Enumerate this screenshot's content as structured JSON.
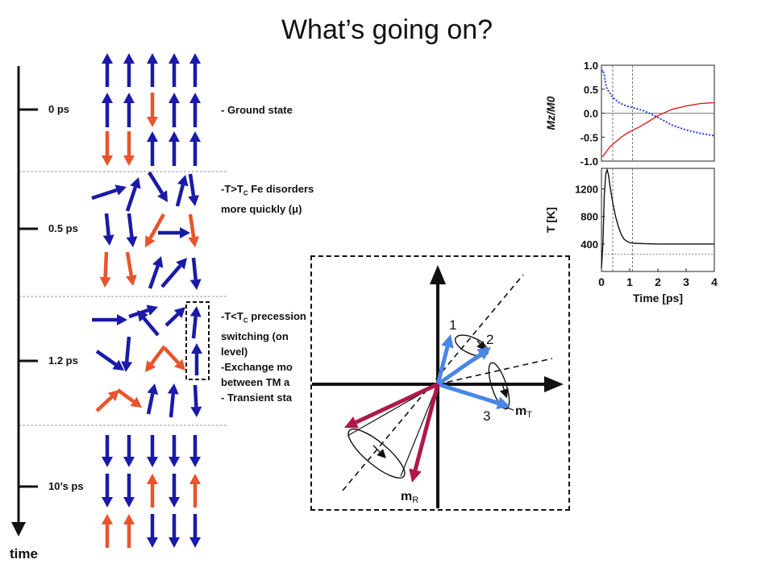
{
  "title": "What’s going on?",
  "timeline": {
    "axis_label": "time",
    "ticks": [
      "0 ps",
      "0.5 ps",
      "1.2 ps",
      "10’s ps"
    ]
  },
  "descriptions": {
    "ground": "- Ground state",
    "disorder_1": "-T>T",
    "disorder_sub": "C",
    "disorder_2": " Fe disorders",
    "disorder_3": "more quickly (μ)",
    "prec_1": "-T<T",
    "prec_sub": "C",
    "prec_2": " precession",
    "prec_3": "switching (on",
    "prec_4": "level)",
    "exchange_1": "-Exchange mo",
    "exchange_2": "between TM a",
    "transient": "- Transient sta"
  },
  "inset": {
    "labels": [
      "1",
      "2",
      "3"
    ],
    "mT": "m",
    "mT_sub": "T",
    "mR": "m",
    "mR_sub": "R",
    "colors": {
      "blue": "#4a86e8",
      "red": "#b0174a"
    }
  },
  "colors": {
    "spin_blue": "#1a1aa8",
    "spin_red": "#e8542b"
  },
  "chart_data": [
    {
      "type": "line",
      "ylabel": "Mz/M0",
      "ylim": [
        -1.0,
        1.0
      ],
      "yticks": [
        "1.0",
        "0.5",
        "0.0",
        "-0.5",
        "-1.0"
      ],
      "xlim": [
        0,
        4
      ],
      "series": [
        {
          "color": "#1f3fd6",
          "style": "dotted",
          "x": [
            0,
            0.05,
            0.1,
            0.15,
            0.2,
            0.3,
            0.4,
            0.6,
            0.8,
            1.0,
            1.2,
            1.5,
            1.8,
            2.1,
            2.5,
            3.0,
            3.5,
            4.0
          ],
          "y": [
            0.88,
            0.9,
            0.8,
            0.6,
            0.5,
            0.42,
            0.33,
            0.23,
            0.17,
            0.13,
            0.1,
            0.05,
            -0.03,
            -0.12,
            -0.25,
            -0.35,
            -0.42,
            -0.47
          ]
        },
        {
          "color": "#e02020",
          "style": "solid",
          "x": [
            0,
            0.05,
            0.1,
            0.2,
            0.3,
            0.5,
            0.7,
            0.9,
            1.1,
            1.3,
            1.6,
            2.0,
            2.5,
            3.0,
            3.5,
            4.0
          ],
          "y": [
            -0.9,
            -0.9,
            -0.86,
            -0.78,
            -0.7,
            -0.6,
            -0.5,
            -0.42,
            -0.36,
            -0.3,
            -0.2,
            -0.05,
            0.08,
            0.15,
            0.2,
            0.22
          ]
        }
      ]
    },
    {
      "type": "line",
      "ylabel": "T [K]",
      "xlabel": "Time [ps]",
      "ylim": [
        0,
        1500
      ],
      "yticks": [
        "1200",
        "800",
        "400"
      ],
      "xticks": [
        "0",
        "1",
        "2",
        "3",
        "4"
      ],
      "xlim": [
        0,
        4
      ],
      "series": [
        {
          "color": "#111111",
          "style": "solid",
          "x": [
            0,
            0.05,
            0.1,
            0.15,
            0.2,
            0.25,
            0.3,
            0.4,
            0.5,
            0.6,
            0.7,
            0.8,
            0.9,
            1.0,
            1.2,
            1.5,
            2.0,
            3.0,
            4.0
          ],
          "y": [
            50,
            400,
            1100,
            1420,
            1480,
            1400,
            1250,
            1000,
            800,
            650,
            540,
            470,
            440,
            420,
            410,
            405,
            400,
            400,
            400
          ]
        }
      ]
    }
  ]
}
